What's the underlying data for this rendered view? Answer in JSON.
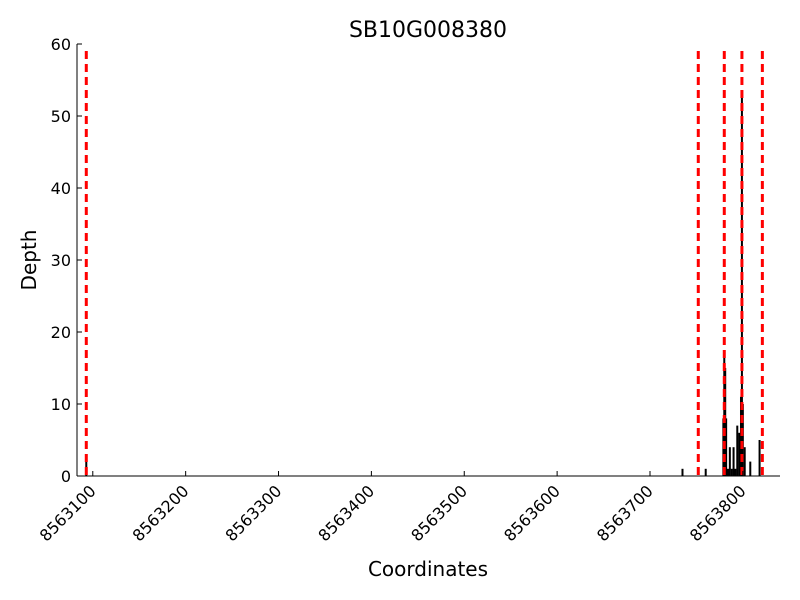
{
  "chart_data": {
    "type": "bar",
    "title": "SB10G008380",
    "xlabel": "Coordinates",
    "ylabel": "Depth",
    "xlim": [
      8563083,
      8563840
    ],
    "ylim": [
      0,
      60
    ],
    "xticks": [
      8563100,
      8563200,
      8563300,
      8563400,
      8563500,
      8563600,
      8563700,
      8563800
    ],
    "yticks": [
      0,
      10,
      20,
      30,
      40,
      50,
      60
    ],
    "grid": false,
    "bar_color": "#000000",
    "bars": [
      {
        "x": 8563093,
        "y": 2
      },
      {
        "x": 8563735,
        "y": 1
      },
      {
        "x": 8563760,
        "y": 1
      },
      {
        "x": 8563779,
        "y": 8
      },
      {
        "x": 8563780,
        "y": 17
      },
      {
        "x": 8563781,
        "y": 15
      },
      {
        "x": 8563782,
        "y": 8
      },
      {
        "x": 8563784,
        "y": 1
      },
      {
        "x": 8563786,
        "y": 4
      },
      {
        "x": 8563788,
        "y": 1
      },
      {
        "x": 8563790,
        "y": 4
      },
      {
        "x": 8563792,
        "y": 1
      },
      {
        "x": 8563794,
        "y": 7
      },
      {
        "x": 8563796,
        "y": 6
      },
      {
        "x": 8563798,
        "y": 11
      },
      {
        "x": 8563799,
        "y": 53
      },
      {
        "x": 8563800,
        "y": 10
      },
      {
        "x": 8563802,
        "y": 4
      },
      {
        "x": 8563808,
        "y": 2
      },
      {
        "x": 8563818,
        "y": 5
      }
    ],
    "vlines": {
      "color": "#ff0000",
      "style": "dashed",
      "x": [
        8563093,
        8563752,
        8563780,
        8563799,
        8563821
      ]
    }
  }
}
